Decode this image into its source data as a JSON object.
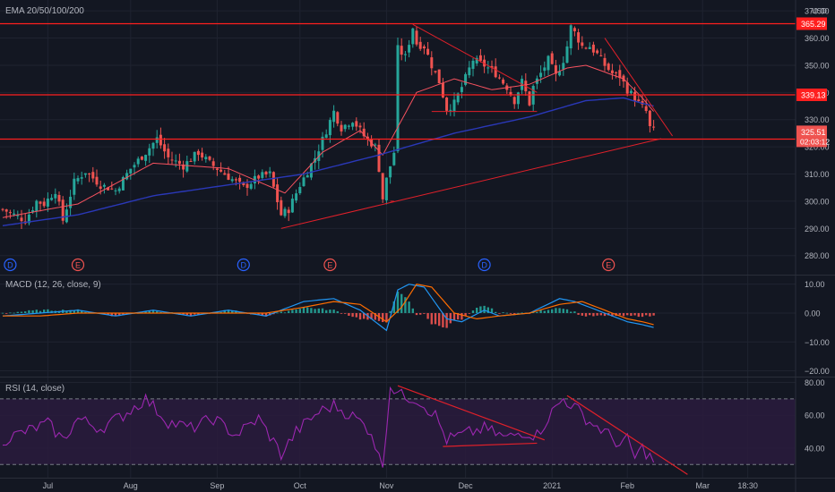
{
  "colors": {
    "background": "#131722",
    "grid": "#1f2330",
    "border": "#2a2e39",
    "text": "#b2b5be",
    "up": "#26a69a",
    "down": "#ef5350",
    "level": "#ff1f1f",
    "trend": "#e0202a",
    "ema_short": "#f7525f",
    "ema_long": "#2a38b8",
    "macd": "#2196f3",
    "signal": "#ff6d00",
    "rsi": "#9c27b0",
    "rsi_band": "#2a1b3d"
  },
  "price_pane": {
    "indicator_label": "EMA 20/50/100/200",
    "currency": "USD",
    "ylim": [
      273,
      374
    ],
    "axis_ticks": [
      "370.00",
      "360.00",
      "350.00",
      "340.00",
      "330.00",
      "320.00",
      "310.00",
      "300.00",
      "290.00",
      "280.00"
    ],
    "axis_values": [
      370,
      360,
      350,
      340,
      330,
      320,
      310,
      300,
      290,
      280
    ],
    "levels": [
      {
        "value": 365.29,
        "label": "365.29"
      },
      {
        "value": 339.13,
        "label": "339.13"
      },
      {
        "value": 322.84,
        "label": "322.84"
      }
    ],
    "last_price": {
      "value": 325.51,
      "label": "325.51",
      "countdown": "02:03:12"
    },
    "events": [
      {
        "letter": "D",
        "x_index": 2
      },
      {
        "letter": "E",
        "x_index": 20
      },
      {
        "letter": "D",
        "x_index": 64
      },
      {
        "letter": "E",
        "x_index": 87
      },
      {
        "letter": "D",
        "x_index": 128
      },
      {
        "letter": "E",
        "x_index": 161
      }
    ]
  },
  "macd_pane": {
    "label": "MACD (12, 26, close, 9)",
    "ylim": [
      -22,
      13
    ],
    "axis_ticks": [
      "10.00",
      "0.00",
      "−10.00",
      "−20.00"
    ],
    "axis_values": [
      10,
      0,
      -10,
      -20
    ]
  },
  "rsi_pane": {
    "label": "RSI (14, close)",
    "ylim": [
      22,
      83
    ],
    "band": [
      30,
      70
    ],
    "axis_ticks": [
      "80.00",
      "60.00",
      "40.00"
    ],
    "axis_values": [
      80,
      60,
      40
    ]
  },
  "time_axis": {
    "ticks": [
      {
        "label": "Jul",
        "index": 12
      },
      {
        "label": "Aug",
        "index": 34
      },
      {
        "label": "Sep",
        "index": 57
      },
      {
        "label": "Oct",
        "index": 79
      },
      {
        "label": "Nov",
        "index": 102
      },
      {
        "label": "Dec",
        "index": 123
      },
      {
        "label": "2021",
        "index": 146
      },
      {
        "label": "Feb",
        "index": 166
      },
      {
        "label": "Mar",
        "index": 186
      },
      {
        "label": "18:30",
        "index": 198
      }
    ]
  },
  "chart_data": {
    "type": "candlestick",
    "x_start": "Jul",
    "anchors": [
      [
        0,
        297
      ],
      [
        3,
        295
      ],
      [
        6,
        293
      ],
      [
        9,
        300
      ],
      [
        11,
        299
      ],
      [
        14,
        304
      ],
      [
        16,
        293
      ],
      [
        19,
        307
      ],
      [
        22,
        311
      ],
      [
        26,
        306
      ],
      [
        30,
        304
      ],
      [
        34,
        312
      ],
      [
        38,
        318
      ],
      [
        41,
        323
      ],
      [
        44,
        316
      ],
      [
        48,
        313
      ],
      [
        52,
        318
      ],
      [
        55,
        314
      ],
      [
        60,
        309
      ],
      [
        64,
        305
      ],
      [
        68,
        309
      ],
      [
        71,
        310
      ],
      [
        74,
        295
      ],
      [
        76,
        297
      ],
      [
        79,
        306
      ],
      [
        83,
        316
      ],
      [
        86,
        326
      ],
      [
        88,
        333
      ],
      [
        90,
        327
      ],
      [
        93,
        330
      ],
      [
        96,
        324
      ],
      [
        99,
        320
      ],
      [
        100,
        312
      ],
      [
        101,
        301
      ],
      [
        102,
        308
      ],
      [
        104,
        318
      ],
      [
        105,
        356
      ],
      [
        107,
        353
      ],
      [
        109,
        364
      ],
      [
        110,
        358
      ],
      [
        112,
        357
      ],
      [
        114,
        350
      ],
      [
        116,
        344
      ],
      [
        118,
        334
      ],
      [
        120,
        336
      ],
      [
        122,
        342
      ],
      [
        125,
        352
      ],
      [
        128,
        350
      ],
      [
        131,
        347
      ],
      [
        134,
        342
      ],
      [
        136,
        337
      ],
      [
        138,
        344
      ],
      [
        140,
        336
      ],
      [
        141,
        342
      ],
      [
        143,
        347
      ],
      [
        145,
        352
      ],
      [
        147,
        346
      ],
      [
        149,
        352
      ],
      [
        150,
        357
      ],
      [
        151,
        364
      ],
      [
        152,
        362
      ],
      [
        154,
        357
      ],
      [
        156,
        357
      ],
      [
        158,
        354
      ],
      [
        160,
        350
      ],
      [
        162,
        347
      ],
      [
        164,
        346
      ],
      [
        166,
        341
      ],
      [
        168,
        338
      ],
      [
        169,
        336
      ],
      [
        171,
        333
      ],
      [
        172,
        327
      ],
      [
        173,
        326
      ]
    ],
    "ema_short_anchors": [
      [
        0,
        294
      ],
      [
        20,
        299
      ],
      [
        40,
        314
      ],
      [
        60,
        312
      ],
      [
        75,
        303
      ],
      [
        85,
        318
      ],
      [
        95,
        326
      ],
      [
        101,
        317
      ],
      [
        110,
        340
      ],
      [
        120,
        345
      ],
      [
        130,
        341
      ],
      [
        140,
        343
      ],
      [
        150,
        349
      ],
      [
        155,
        350
      ],
      [
        165,
        345
      ],
      [
        170,
        338
      ],
      [
        173,
        333
      ]
    ],
    "ema_long_anchors": [
      [
        0,
        291
      ],
      [
        20,
        295
      ],
      [
        40,
        302
      ],
      [
        60,
        306
      ],
      [
        80,
        310
      ],
      [
        100,
        317
      ],
      [
        120,
        325
      ],
      [
        140,
        331
      ],
      [
        155,
        337
      ],
      [
        165,
        338
      ],
      [
        170,
        336
      ],
      [
        173,
        335
      ]
    ],
    "macd_anchors": [
      [
        0,
        -1
      ],
      [
        10,
        0
      ],
      [
        20,
        1
      ],
      [
        30,
        -1
      ],
      [
        40,
        1
      ],
      [
        50,
        -1
      ],
      [
        60,
        1
      ],
      [
        70,
        -1
      ],
      [
        80,
        4
      ],
      [
        88,
        5
      ],
      [
        95,
        1
      ],
      [
        102,
        -6
      ],
      [
        105,
        8
      ],
      [
        108,
        10
      ],
      [
        112,
        9
      ],
      [
        118,
        -2
      ],
      [
        122,
        -3
      ],
      [
        128,
        1
      ],
      [
        132,
        -1
      ],
      [
        140,
        0
      ],
      [
        148,
        5
      ],
      [
        152,
        4
      ],
      [
        158,
        1
      ],
      [
        162,
        -1
      ],
      [
        166,
        -3
      ],
      [
        170,
        -4
      ],
      [
        173,
        -5
      ]
    ],
    "signal_anchors": [
      [
        0,
        -1
      ],
      [
        10,
        -1
      ],
      [
        20,
        0
      ],
      [
        30,
        0
      ],
      [
        40,
        0
      ],
      [
        50,
        0
      ],
      [
        60,
        0
      ],
      [
        70,
        0
      ],
      [
        80,
        2
      ],
      [
        88,
        4
      ],
      [
        95,
        3
      ],
      [
        102,
        -3
      ],
      [
        106,
        2
      ],
      [
        110,
        10
      ],
      [
        114,
        9
      ],
      [
        120,
        0
      ],
      [
        126,
        -2
      ],
      [
        132,
        -1
      ],
      [
        140,
        0
      ],
      [
        148,
        3
      ],
      [
        154,
        4
      ],
      [
        160,
        1
      ],
      [
        166,
        -2
      ],
      [
        170,
        -3
      ],
      [
        173,
        -4
      ]
    ],
    "rsi_anchors": [
      [
        0,
        45
      ],
      [
        6,
        50
      ],
      [
        12,
        55
      ],
      [
        16,
        45
      ],
      [
        20,
        58
      ],
      [
        26,
        52
      ],
      [
        32,
        60
      ],
      [
        38,
        70
      ],
      [
        44,
        56
      ],
      [
        50,
        52
      ],
      [
        56,
        58
      ],
      [
        62,
        48
      ],
      [
        68,
        58
      ],
      [
        72,
        44
      ],
      [
        74,
        36
      ],
      [
        78,
        50
      ],
      [
        84,
        62
      ],
      [
        88,
        66
      ],
      [
        94,
        58
      ],
      [
        98,
        50
      ],
      [
        100,
        34
      ],
      [
        101,
        30
      ],
      [
        103,
        78
      ],
      [
        106,
        72
      ],
      [
        110,
        70
      ],
      [
        115,
        60
      ],
      [
        118,
        45
      ],
      [
        122,
        48
      ],
      [
        128,
        52
      ],
      [
        134,
        46
      ],
      [
        138,
        50
      ],
      [
        142,
        48
      ],
      [
        146,
        62
      ],
      [
        149,
        70
      ],
      [
        152,
        65
      ],
      [
        156,
        56
      ],
      [
        160,
        50
      ],
      [
        164,
        42
      ],
      [
        166,
        45
      ],
      [
        168,
        34
      ],
      [
        170,
        40
      ],
      [
        173,
        32
      ]
    ],
    "price_trendlines": [
      {
        "from": [
          74,
          290
        ],
        "to": [
          175,
          323
        ]
      },
      {
        "from": [
          103,
          300
        ],
        "to": [
          104,
          300
        ]
      },
      {
        "from": [
          109,
          365
        ],
        "to": [
          142,
          340
        ]
      },
      {
        "from": [
          114,
          333
        ],
        "to": [
          142,
          333
        ]
      },
      {
        "from": [
          160,
          360
        ],
        "to": [
          178,
          324
        ]
      }
    ],
    "rsi_trendlines": [
      {
        "from": [
          105,
          78
        ],
        "to": [
          144,
          45
        ]
      },
      {
        "from": [
          117,
          41
        ],
        "to": [
          142,
          43
        ]
      },
      {
        "from": [
          150,
          72
        ],
        "to": [
          182,
          24
        ]
      }
    ]
  }
}
